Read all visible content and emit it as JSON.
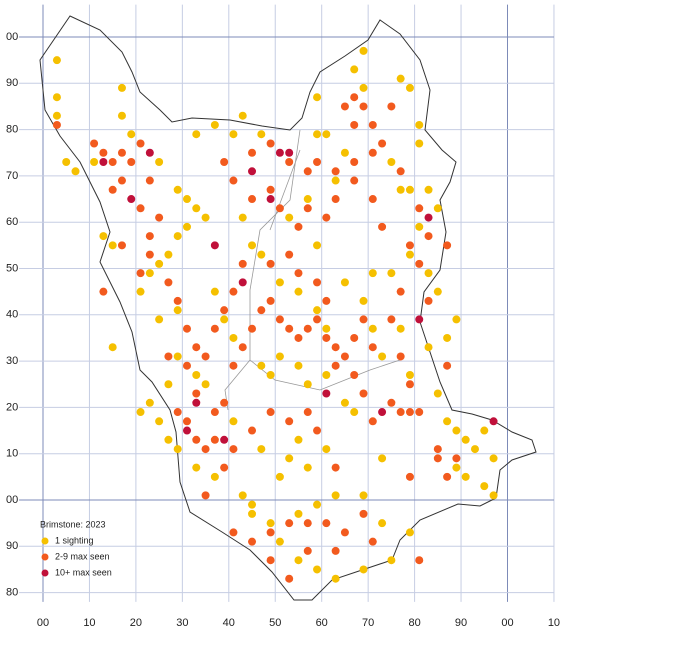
{
  "chart_data": {
    "type": "scatter",
    "legend_title": "Brimstone:  2023",
    "xlim": [
      -3,
      110
    ],
    "ylim": [
      78,
      207
    ],
    "xticks": [
      {
        "value": 0,
        "label": "00"
      },
      10,
      20,
      30,
      40,
      50,
      60,
      70,
      80,
      90,
      {
        "value": 100,
        "label": "00"
      },
      {
        "value": 110,
        "label": "10"
      }
    ],
    "yticks": [
      {
        "value": 200,
        "label": "00"
      },
      {
        "value": 190,
        "label": "90"
      },
      {
        "value": 180,
        "label": "80"
      },
      {
        "value": 170,
        "label": "70"
      },
      {
        "value": 160,
        "label": "60"
      },
      {
        "value": 150,
        "label": "50"
      },
      {
        "value": 140,
        "label": "40"
      },
      {
        "value": 130,
        "label": "30"
      },
      {
        "value": 120,
        "label": "20"
      },
      {
        "value": 110,
        "label": "10"
      },
      {
        "value": 100,
        "label": "00"
      },
      90,
      80
    ],
    "grid": true,
    "series": [
      {
        "name": "1 sighting",
        "color": "#f5c000",
        "x": [
          3,
          3,
          3,
          5,
          7,
          11,
          17,
          17,
          19,
          25,
          29,
          31,
          31,
          29,
          33,
          35,
          33,
          37,
          41,
          43,
          47,
          59,
          61,
          59,
          69,
          67,
          69,
          77,
          79,
          81,
          81,
          65,
          75,
          77,
          79,
          83,
          85,
          81,
          79,
          75,
          71,
          83,
          85,
          89,
          87,
          83,
          77,
          79,
          85,
          87,
          89,
          91,
          95,
          93,
          97,
          89,
          91,
          95,
          97,
          73,
          69,
          73,
          79,
          75,
          69,
          63,
          59,
          55,
          51,
          49,
          45,
          43,
          37,
          33,
          29,
          27,
          25,
          21,
          23,
          27,
          29,
          33,
          35,
          29,
          25,
          21,
          15,
          13,
          15,
          23,
          25,
          27,
          37,
          39,
          41,
          47,
          49,
          51,
          55,
          57,
          61,
          65,
          67,
          55,
          53,
          51,
          57,
          61,
          63,
          59,
          55,
          45,
          47,
          41,
          51,
          55,
          59,
          61,
          45,
          47,
          43,
          53,
          57,
          63,
          59,
          65,
          69,
          71,
          73
        ],
        "y": [
          195,
          187,
          183,
          173,
          171,
          173,
          189,
          183,
          179,
          173,
          167,
          165,
          159,
          157,
          163,
          161,
          179,
          181,
          179,
          183,
          179,
          179,
          179,
          187,
          197,
          193,
          189,
          191,
          189,
          181,
          177,
          175,
          173,
          167,
          167,
          167,
          163,
          159,
          153,
          149,
          149,
          149,
          145,
          139,
          135,
          133,
          137,
          127,
          123,
          117,
          115,
          113,
          115,
          111,
          109,
          107,
          105,
          103,
          101,
          109,
          101,
          95,
          93,
          87,
          85,
          83,
          85,
          87,
          91,
          95,
          97,
          101,
          105,
          107,
          111,
          113,
          117,
          119,
          121,
          125,
          131,
          127,
          125,
          141,
          139,
          145,
          133,
          157,
          155,
          149,
          151,
          153,
          145,
          139,
          135,
          129,
          127,
          131,
          129,
          125,
          127,
          121,
          119,
          113,
          109,
          105,
          107,
          111,
          101,
          99,
          97,
          99,
          111,
          117,
          147,
          145,
          141,
          137,
          155,
          153,
          161,
          161,
          165,
          169,
          155,
          147,
          143,
          137,
          131
        ]
      },
      {
        "name": "2-9 max seen",
        "color": "#f25a1e",
        "x": [
          3,
          11,
          13,
          15,
          17,
          19,
          21,
          17,
          15,
          21,
          23,
          25,
          23,
          23,
          21,
          27,
          29,
          31,
          33,
          31,
          27,
          29,
          31,
          33,
          35,
          37,
          39,
          41,
          43,
          45,
          47,
          49,
          51,
          53,
          55,
          57,
          59,
          61,
          63,
          65,
          67,
          69,
          71,
          75,
          77,
          73,
          71,
          67,
          63,
          61,
          57,
          55,
          51,
          49,
          45,
          41,
          39,
          45,
          49,
          53,
          57,
          59,
          63,
          67,
          71,
          71,
          69,
          67,
          65,
          67,
          73,
          77,
          81,
          83,
          79,
          81,
          87,
          77,
          79,
          77,
          81,
          87,
          85,
          89,
          87,
          85,
          79,
          81,
          71,
          65,
          61,
          57,
          53,
          49,
          45,
          41,
          49,
          53,
          57,
          63,
          69,
          63,
          59,
          57,
          53,
          49,
          45,
          41,
          39,
          35,
          37,
          33,
          35,
          37,
          39,
          41,
          43,
          49,
          53,
          55,
          59,
          61,
          63,
          67,
          69,
          71,
          75,
          79,
          83,
          75,
          13,
          17
        ],
        "y": [
          181,
          177,
          175,
          173,
          175,
          173,
          177,
          169,
          167,
          163,
          169,
          161,
          157,
          153,
          149,
          147,
          143,
          137,
          133,
          129,
          131,
          119,
          117,
          113,
          111,
          119,
          121,
          129,
          133,
          137,
          141,
          143,
          139,
          137,
          135,
          137,
          139,
          135,
          133,
          131,
          135,
          139,
          133,
          139,
          145,
          159,
          165,
          169,
          165,
          161,
          163,
          159,
          163,
          167,
          165,
          169,
          173,
          175,
          177,
          173,
          171,
          173,
          171,
          173,
          175,
          181,
          185,
          187,
          185,
          181,
          177,
          171,
          163,
          157,
          155,
          151,
          155,
          131,
          125,
          119,
          119,
          129,
          111,
          109,
          105,
          109,
          105,
          87,
          91,
          93,
          95,
          95,
          95,
          93,
          91,
          93,
          87,
          83,
          89,
          89,
          97,
          107,
          115,
          119,
          117,
          119,
          115,
          111,
          107,
          101,
          113,
          123,
          131,
          137,
          141,
          145,
          151,
          151,
          153,
          149,
          147,
          143,
          129,
          127,
          123,
          117,
          121,
          119,
          143,
          185,
          145,
          155
        ]
      },
      {
        "name": "10+ max seen",
        "color": "#c0103a",
        "x": [
          13,
          23,
          19,
          37,
          45,
          49,
          51,
          53,
          43,
          83,
          81,
          33,
          31,
          39,
          61,
          73,
          97
        ],
        "y": [
          173,
          175,
          165,
          155,
          171,
          165,
          175,
          175,
          147,
          161,
          139,
          121,
          115,
          113,
          123,
          119,
          117
        ]
      }
    ]
  }
}
